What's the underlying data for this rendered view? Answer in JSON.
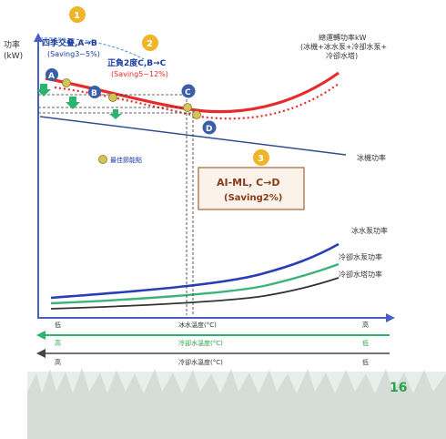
{
  "y_axis_label": "功率\n(kW)",
  "total_power_label": "總運轉功率kW\n(冰機+冰水泵+冷卻水泵+\n冷卻水塔)",
  "chiller_power_label": "冰機功率",
  "chw_pump_label": "冰水泵功率",
  "cw_pump_label": "冷卻水泵功率",
  "tower_label": "冷卻水塔功率",
  "step1": {
    "num": "1",
    "title": "四季交叠,A→B",
    "saving": "(Saving3~5%)"
  },
  "step2": {
    "num": "2",
    "title": "正負2度C,B→C",
    "saving": "(Saving5~12%)"
  },
  "step3": {
    "num": "3",
    "title": "AI-ML, C→D",
    "saving": "(Saving2%)"
  },
  "legend_text": "最佳節能點",
  "points": {
    "A": "A",
    "B": "B",
    "C": "C",
    "D": "D"
  },
  "axis1": {
    "low": "低",
    "label": "冰水溫度(°C)",
    "high": "高"
  },
  "axis2": {
    "low": "高",
    "label": "冷卻水溫度(°C)",
    "high": "低"
  },
  "axis3": {
    "low": "高",
    "label": "冷卻水溫度(°C)",
    "high": "低"
  },
  "page_number": "16",
  "colors": {
    "total_curve": "#e52b2b",
    "chiller_line": "#2f4f8f",
    "chw_pump": "#2a3db5",
    "cw_pump": "#3bb37a",
    "tower": "#333333",
    "point_blue": "#3b5ea8",
    "badge_gold": "#f0b429",
    "axis": "#4a5fc1",
    "green_arrow": "#2db36f"
  }
}
